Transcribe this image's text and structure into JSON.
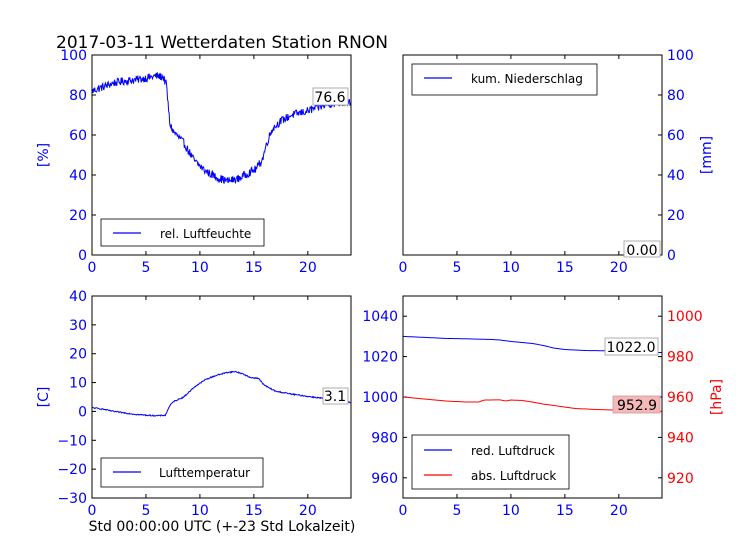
{
  "title": "2017-03-11 Wetterdaten Station RNON",
  "xlabel": "Std 00:00:00 UTC (+-23 Std Lokalzeit)",
  "colors": {
    "blue": "#0000ff",
    "red": "#ff0000",
    "readout_red_bg": "#f4b8b8"
  },
  "chart_data": [
    {
      "id": "humidity",
      "type": "line",
      "ylabel": "[%]",
      "ylabel_color": "#0000ff",
      "x_range": [
        0,
        24
      ],
      "y_range": [
        0,
        100
      ],
      "x_ticks": [
        "0",
        "5",
        "10",
        "15",
        "20"
      ],
      "y_ticks": [
        "0",
        "20",
        "40",
        "60",
        "80",
        "100"
      ],
      "tick_color": "#0000ff",
      "legend": "rel. Luftfeuchte",
      "legend_position": "lower-left",
      "readout": "76.6",
      "series": [
        {
          "name": "rel. Luftfeuchte",
          "color": "#0000ff",
          "noise": 2.0,
          "points": [
            [
              0,
              82
            ],
            [
              1,
              84
            ],
            [
              2,
              86
            ],
            [
              3,
              87
            ],
            [
              4,
              87.5
            ],
            [
              5,
              88.5
            ],
            [
              6,
              89.5
            ],
            [
              6.6,
              89
            ],
            [
              6.9,
              85
            ],
            [
              7.2,
              66
            ],
            [
              7.5,
              62
            ],
            [
              8.5,
              56
            ],
            [
              9.5,
              47
            ],
            [
              10.5,
              42
            ],
            [
              11.5,
              39
            ],
            [
              12.5,
              37
            ],
            [
              13.5,
              38
            ],
            [
              14.5,
              41
            ],
            [
              15.2,
              43
            ],
            [
              15.8,
              48
            ],
            [
              16.2,
              56
            ],
            [
              16.7,
              63
            ],
            [
              17.5,
              67
            ],
            [
              18.5,
              70
            ],
            [
              20,
              72
            ],
            [
              21,
              74
            ],
            [
              22,
              75.5
            ],
            [
              23,
              76.2
            ],
            [
              24,
              76.6
            ]
          ]
        }
      ]
    },
    {
      "id": "precip",
      "type": "line",
      "ylabel": "[mm]",
      "ylabel_color": "#0000ff",
      "x_range": [
        0,
        24
      ],
      "y_range": [
        0,
        100
      ],
      "x_ticks": [
        "0",
        "5",
        "10",
        "15",
        "20"
      ],
      "y_ticks": [
        "0",
        "20",
        "40",
        "60",
        "80",
        "100"
      ],
      "tick_color": "#0000ff",
      "y_axis_side": "right",
      "legend": "kum. Niederschlag",
      "legend_position": "top-left",
      "readout": "0.00",
      "series": [
        {
          "name": "kum. Niederschlag",
          "color": "#0000ff",
          "noise": 0,
          "points": [
            [
              0,
              0
            ],
            [
              24,
              0
            ]
          ]
        }
      ]
    },
    {
      "id": "temperature",
      "type": "line",
      "ylabel": "[C]",
      "ylabel_color": "#0000ff",
      "x_range": [
        0,
        24
      ],
      "y_range": [
        -30,
        40
      ],
      "x_ticks": [
        "0",
        "5",
        "10",
        "15",
        "20"
      ],
      "y_ticks": [
        "-30",
        "-20",
        "-10",
        "0",
        "10",
        "20",
        "30",
        "40"
      ],
      "y_tick_display": [
        "−30",
        "−20",
        "−10",
        "0",
        "10",
        "20",
        "30",
        "40"
      ],
      "tick_color": "#0000ff",
      "legend": "Lufttemperatur",
      "legend_position": "lower-left",
      "readout": "3.1",
      "series": [
        {
          "name": "Lufttemperatur",
          "color": "#0000ff",
          "noise": 0.2,
          "points": [
            [
              0,
              1.3
            ],
            [
              1,
              0.8
            ],
            [
              2,
              0
            ],
            [
              3,
              -0.5
            ],
            [
              4,
              -1
            ],
            [
              5,
              -1.3
            ],
            [
              6,
              -1.5
            ],
            [
              6.8,
              -1.3
            ],
            [
              7.2,
              2
            ],
            [
              7.6,
              3.5
            ],
            [
              8.5,
              5
            ],
            [
              9.5,
              8.5
            ],
            [
              10.5,
              11
            ],
            [
              11.5,
              12.5
            ],
            [
              12.5,
              13.5
            ],
            [
              13.3,
              13.8
            ],
            [
              14,
              13
            ],
            [
              14.6,
              11.8
            ],
            [
              15.4,
              11.5
            ],
            [
              16,
              9
            ],
            [
              17,
              7
            ],
            [
              18.5,
              6
            ],
            [
              20,
              5.2
            ],
            [
              21.5,
              4.5
            ],
            [
              23,
              3.6
            ],
            [
              24,
              3.1
            ]
          ]
        }
      ]
    },
    {
      "id": "pressure",
      "type": "line",
      "x_range": [
        0,
        24
      ],
      "y_range": [
        950,
        1050
      ],
      "y2_range": [
        910,
        1010
      ],
      "x_ticks": [
        "0",
        "5",
        "10",
        "15",
        "20"
      ],
      "y_ticks": [
        "960",
        "980",
        "1000",
        "1020",
        "1040"
      ],
      "y2_ticks": [
        "920",
        "940",
        "960",
        "980",
        "1000"
      ],
      "tick_color": "#0000ff",
      "y2_tick_color": "#ff0000",
      "ylabel2": "[hPa]",
      "ylabel2_color": "#ff0000",
      "legend_position": "lower-left",
      "readout_red": "1022.0",
      "readout_abs": "952.9",
      "series": [
        {
          "name": "red. Luftdruck",
          "color": "#0000ff",
          "axis": "left",
          "noise": 0,
          "points": [
            [
              0,
              1030
            ],
            [
              2,
              1029.5
            ],
            [
              4,
              1029
            ],
            [
              6,
              1028.8
            ],
            [
              8,
              1028.5
            ],
            [
              9,
              1028.2
            ],
            [
              10,
              1027.5
            ],
            [
              12,
              1026.5
            ],
            [
              13,
              1025.5
            ],
            [
              14,
              1024.2
            ],
            [
              15,
              1023.5
            ],
            [
              17,
              1023
            ],
            [
              20,
              1022.8
            ],
            [
              24,
              1022
            ]
          ]
        },
        {
          "name": "abs. Luftdruck",
          "color": "#ff0000",
          "axis": "right",
          "noise": 0,
          "points": [
            [
              0,
              960
            ],
            [
              2,
              959
            ],
            [
              4,
              958
            ],
            [
              6,
              957.5
            ],
            [
              7,
              957.5
            ],
            [
              7.5,
              958.5
            ],
            [
              9,
              958.6
            ],
            [
              9.5,
              958
            ],
            [
              10,
              958.5
            ],
            [
              11,
              958.3
            ],
            [
              12,
              957.5
            ],
            [
              13,
              956.5
            ],
            [
              14,
              955.8
            ],
            [
              15,
              955
            ],
            [
              16,
              954.3
            ],
            [
              18,
              953.8
            ],
            [
              20,
              953.5
            ],
            [
              22,
              953.2
            ],
            [
              24,
              952.9
            ]
          ]
        }
      ]
    }
  ]
}
